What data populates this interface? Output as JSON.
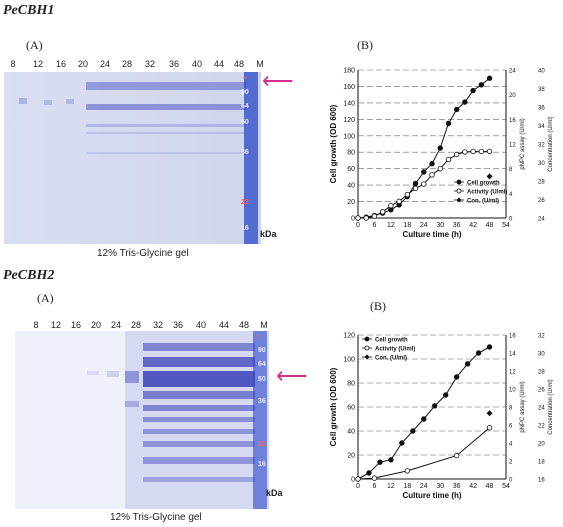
{
  "section1": {
    "title": "PeCBH1",
    "gel": {
      "panel_label": "(A)",
      "lanes": [
        "8",
        "12",
        "16",
        "20",
        "24",
        "28",
        "32",
        "36",
        "40",
        "44",
        "48",
        "M"
      ],
      "markers": [
        "90",
        "64",
        "50",
        "36",
        "22",
        "16"
      ],
      "unit": "kDa",
      "caption": "12% Tris-Glycine gel"
    },
    "chart_label": "(B)"
  },
  "section2": {
    "title": "PeCBH2",
    "gel": {
      "panel_label": "(A)",
      "lanes": [
        "8",
        "12",
        "16",
        "20",
        "24",
        "28",
        "32",
        "36",
        "40",
        "44",
        "48",
        "M"
      ],
      "markers": [
        "90",
        "64",
        "50",
        "36",
        "22",
        "16"
      ],
      "unit": "kDa",
      "caption": "12% Tris-Glycine gel"
    },
    "chart_label": "(B)"
  },
  "colors": {
    "gel_bg": "#dfe4f4",
    "band": "#3a3fb8",
    "arrow": "#d4308f",
    "marker_lane": "#2848c8"
  },
  "chart_data": [
    {
      "type": "line",
      "xlabel": "Culture time (h)",
      "ylabel": "Cell growth (OD 600)",
      "y2label": "pNPC assay (U/ml)",
      "y3label": "Concentration (U/ml)",
      "xlim": [
        0,
        54
      ],
      "ylim": [
        0,
        180
      ],
      "y2lim": [
        0,
        24
      ],
      "y3lim": [
        24,
        40
      ],
      "xticks": [
        0,
        6,
        12,
        18,
        24,
        30,
        36,
        42,
        48,
        54
      ],
      "yticks": [
        0,
        20,
        40,
        60,
        80,
        100,
        120,
        140,
        160,
        180
      ],
      "y2ticks": [
        0,
        4,
        8,
        12,
        16,
        20,
        24
      ],
      "y3ticks": [
        24,
        26,
        28,
        30,
        32,
        34,
        36,
        38,
        40
      ],
      "grid": "horizontal-dashed",
      "legend_position": "bottom-right",
      "series": [
        {
          "name": "Cell growth",
          "marker": "filled-circle",
          "x": [
            0,
            3,
            6,
            9,
            12,
            15,
            18,
            21,
            24,
            27,
            30,
            33,
            36,
            39,
            42,
            45,
            48
          ],
          "y": [
            0,
            1,
            3,
            6,
            10,
            16,
            26,
            42,
            56,
            66,
            85,
            115,
            132,
            141,
            155,
            162,
            170
          ]
        },
        {
          "name": "Activity (U/ml)",
          "marker": "open-circle",
          "x": [
            0,
            3,
            6,
            9,
            12,
            15,
            18,
            21,
            24,
            27,
            30,
            33,
            36,
            39,
            42,
            45,
            48
          ],
          "y": [
            0,
            0,
            0.3,
            1.0,
            2.0,
            2.7,
            3.8,
            4.8,
            5.5,
            7.0,
            8.0,
            9.5,
            10.3,
            10.7,
            10.8,
            10.8,
            10.8
          ]
        },
        {
          "name": "Con. (U/ml)",
          "marker": "filled-diamond",
          "x": [
            48
          ],
          "y": [
            28.5
          ]
        }
      ]
    },
    {
      "type": "line",
      "xlabel": "Culture time (h)",
      "ylabel": "Cell growth (OD 600)",
      "y2label": "pNPC assay (U/ml)",
      "y3label": "Concentration (U/ml)",
      "xlim": [
        0,
        54
      ],
      "ylim": [
        0,
        120
      ],
      "y2lim": [
        0,
        16
      ],
      "y3lim": [
        16,
        32
      ],
      "xticks": [
        0,
        6,
        12,
        18,
        24,
        30,
        36,
        42,
        48,
        54
      ],
      "yticks": [
        0,
        20,
        40,
        60,
        80,
        100,
        120
      ],
      "y2ticks": [
        0,
        2,
        4,
        6,
        8,
        10,
        12,
        14,
        16
      ],
      "y3ticks": [
        16,
        18,
        20,
        22,
        24,
        26,
        28,
        30,
        32
      ],
      "grid": "horizontal-dashed",
      "legend_position": "top-left",
      "series": [
        {
          "name": "Cell growth",
          "marker": "filled-circle",
          "x": [
            0,
            4,
            8,
            12,
            16,
            20,
            24,
            28,
            32,
            36,
            40,
            44,
            48
          ],
          "y": [
            0,
            5,
            14,
            16,
            30,
            40,
            50,
            61,
            70,
            85,
            96,
            105,
            110
          ]
        },
        {
          "name": "Activity (U/ml)",
          "marker": "open-circle",
          "x": [
            0,
            6,
            18,
            36,
            48
          ],
          "y": [
            0,
            0.1,
            0.9,
            2.6,
            5.7
          ]
        },
        {
          "name": "Con. (U/ml)",
          "marker": "filled-diamond",
          "x": [
            48
          ],
          "y": [
            23.3
          ]
        }
      ]
    }
  ]
}
